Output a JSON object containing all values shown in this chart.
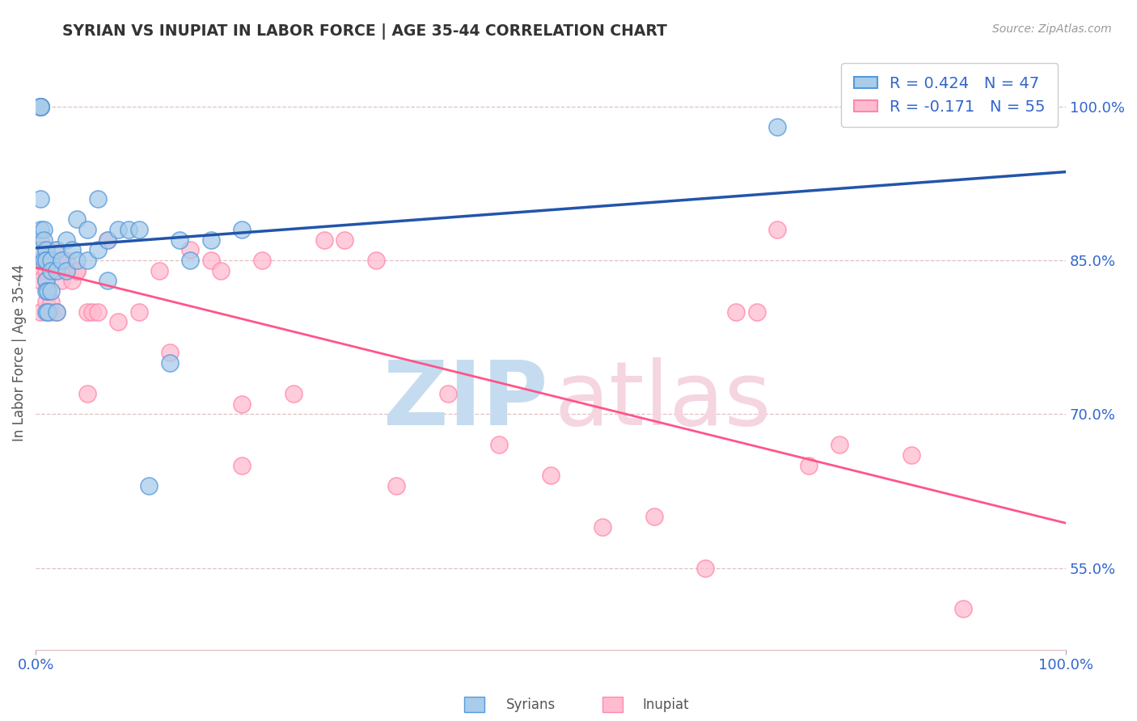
{
  "title": "SYRIAN VS INUPIAT IN LABOR FORCE | AGE 35-44 CORRELATION CHART",
  "source": "Source: ZipAtlas.com",
  "ylabel": "In Labor Force | Age 35-44",
  "xmin": 0.0,
  "xmax": 1.0,
  "ymin": 0.47,
  "ymax": 1.05,
  "yticks": [
    0.55,
    0.7,
    0.85,
    1.0
  ],
  "ytick_labels": [
    "55.0%",
    "70.0%",
    "85.0%",
    "100.0%"
  ],
  "xtick_vals": [
    0.0,
    1.0
  ],
  "xtick_labels": [
    "0.0%",
    "100.0%"
  ],
  "legend_r_syrian": "R = 0.424",
  "legend_n_syrian": "N = 47",
  "legend_r_inupiat": "R = -0.171",
  "legend_n_inupiat": "N = 55",
  "syrian_color": "#A8CCEA",
  "syrian_edge": "#5599DD",
  "inupiat_color": "#FFBBD0",
  "inupiat_edge": "#FF88AA",
  "syrian_line_color": "#2255AA",
  "inupiat_line_color": "#FF5588",
  "grid_color": "#DDBBBB",
  "syrian_x": [
    0.005,
    0.005,
    0.005,
    0.005,
    0.005,
    0.005,
    0.005,
    0.005,
    0.008,
    0.008,
    0.008,
    0.01,
    0.01,
    0.01,
    0.01,
    0.01,
    0.01,
    0.012,
    0.012,
    0.015,
    0.015,
    0.015,
    0.02,
    0.02,
    0.02,
    0.025,
    0.03,
    0.03,
    0.035,
    0.04,
    0.04,
    0.05,
    0.05,
    0.06,
    0.06,
    0.07,
    0.07,
    0.08,
    0.09,
    0.1,
    0.11,
    0.13,
    0.14,
    0.15,
    0.17,
    0.2,
    0.72
  ],
  "syrian_y": [
    1.0,
    1.0,
    1.0,
    1.0,
    1.0,
    0.91,
    0.88,
    0.86,
    0.88,
    0.87,
    0.85,
    0.86,
    0.85,
    0.85,
    0.83,
    0.82,
    0.8,
    0.82,
    0.8,
    0.85,
    0.84,
    0.82,
    0.86,
    0.84,
    0.8,
    0.85,
    0.87,
    0.84,
    0.86,
    0.89,
    0.85,
    0.88,
    0.85,
    0.91,
    0.86,
    0.87,
    0.83,
    0.88,
    0.88,
    0.88,
    0.63,
    0.75,
    0.87,
    0.85,
    0.87,
    0.88,
    0.98
  ],
  "inupiat_x": [
    0.005,
    0.005,
    0.005,
    0.005,
    0.005,
    0.005,
    0.005,
    0.005,
    0.01,
    0.01,
    0.01,
    0.01,
    0.015,
    0.015,
    0.02,
    0.02,
    0.025,
    0.025,
    0.03,
    0.035,
    0.04,
    0.04,
    0.05,
    0.05,
    0.055,
    0.06,
    0.07,
    0.08,
    0.1,
    0.12,
    0.13,
    0.15,
    0.17,
    0.18,
    0.2,
    0.2,
    0.22,
    0.25,
    0.28,
    0.3,
    0.33,
    0.35,
    0.4,
    0.45,
    0.5,
    0.55,
    0.6,
    0.65,
    0.68,
    0.7,
    0.72,
    0.75,
    0.78,
    0.85,
    0.9
  ],
  "inupiat_y": [
    1.0,
    1.0,
    0.87,
    0.85,
    0.85,
    0.84,
    0.83,
    0.8,
    0.86,
    0.84,
    0.83,
    0.81,
    0.81,
    0.8,
    0.86,
    0.8,
    0.85,
    0.83,
    0.85,
    0.83,
    0.84,
    0.84,
    0.8,
    0.72,
    0.8,
    0.8,
    0.87,
    0.79,
    0.8,
    0.84,
    0.76,
    0.86,
    0.85,
    0.84,
    0.71,
    0.65,
    0.85,
    0.72,
    0.87,
    0.87,
    0.85,
    0.63,
    0.72,
    0.67,
    0.64,
    0.59,
    0.6,
    0.55,
    0.8,
    0.8,
    0.88,
    0.65,
    0.67,
    0.66,
    0.51
  ]
}
